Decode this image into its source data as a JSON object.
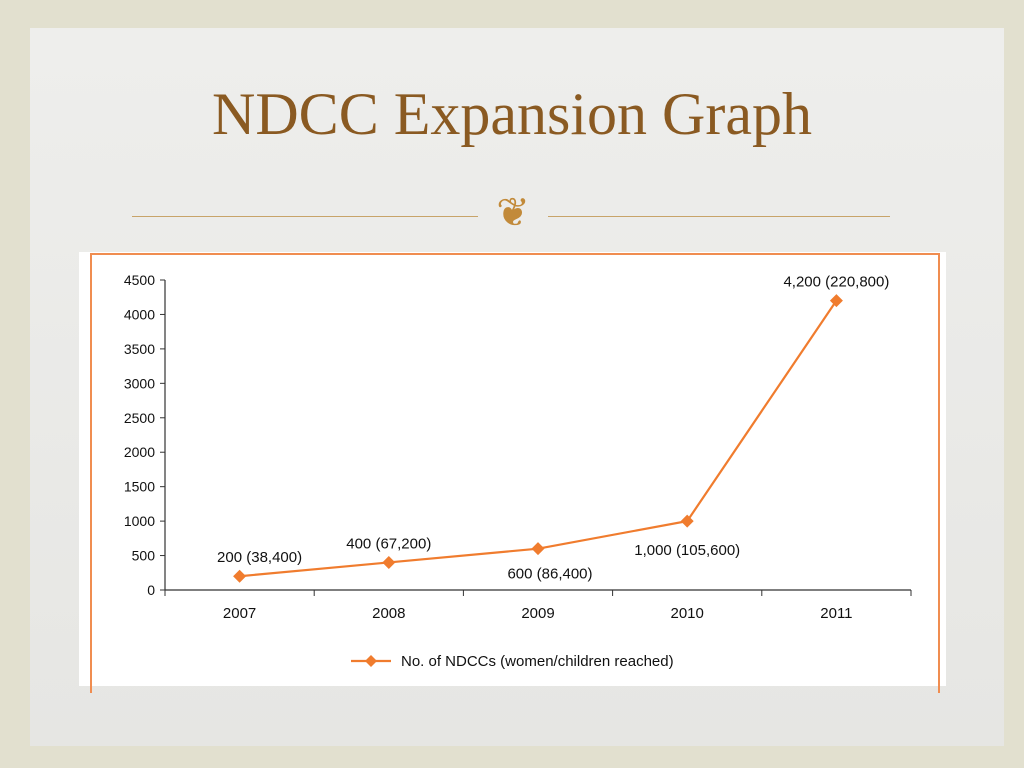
{
  "slide": {
    "title": "NDCC Expansion Graph",
    "divider_icon": "ornament-flourish",
    "divider_glyph": "❦"
  },
  "chart_data": {
    "type": "line",
    "categories": [
      "2007",
      "2008",
      "2009",
      "2010",
      "2011"
    ],
    "series": [
      {
        "name": "No. of NDCCs (women/children reached)",
        "values": [
          200,
          400,
          600,
          1000,
          4200
        ],
        "labels": [
          "200 (38,400)",
          "400 (67,200)",
          "600 (86,400)",
          "1,000 (105,600)",
          "4,200 (220,800)"
        ],
        "color": "#f07c2e",
        "marker": "diamond"
      }
    ],
    "yticks": [
      0,
      500,
      1000,
      1500,
      2000,
      2500,
      3000,
      3500,
      4000,
      4500
    ],
    "ylim": [
      0,
      4500
    ],
    "grid": false,
    "legend": "bottom-center",
    "frame_color": "#f08d50"
  }
}
